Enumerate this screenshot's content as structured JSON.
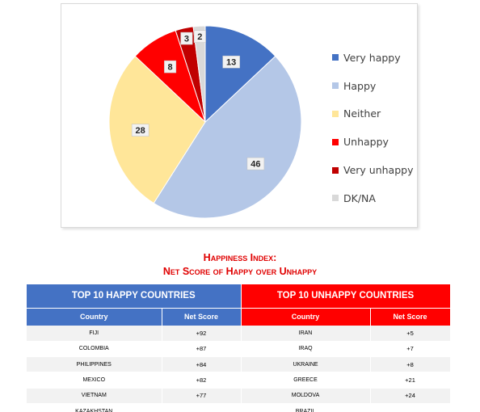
{
  "chart_data": {
    "type": "pie",
    "slices": [
      {
        "label": "Very happy",
        "value": 13,
        "color": "#4472c4"
      },
      {
        "label": "Happy",
        "value": 46,
        "color": "#b4c7e7"
      },
      {
        "label": "Neither",
        "value": 28,
        "color": "#ffe699"
      },
      {
        "label": "Unhappy",
        "value": 8,
        "color": "#ff0000"
      },
      {
        "label": "Very unhappy",
        "value": 3,
        "color": "#c00000"
      },
      {
        "label": "DK/NA",
        "value": 2,
        "color": "#d9d9d9"
      }
    ],
    "legend_position": "right",
    "start_angle": "12 o'clock",
    "direction": "clockwise"
  },
  "index_title": {
    "line1": "Happiness Index:",
    "line2": "Net Score of Happy over Unhappy"
  },
  "table": {
    "happy_header": "TOP 10 HAPPY COUNTRIES",
    "unhappy_header": "TOP 10 UNHAPPY COUNTRIES",
    "col_country": "Country",
    "col_score": "Net Score",
    "happy_header_color": "#4472c4",
    "unhappy_header_color": "#ff0000",
    "rows": [
      {
        "happy_country": "FIJI",
        "happy_score": "+92",
        "unhappy_country": "IRAN",
        "unhappy_score": "+5"
      },
      {
        "happy_country": "COLOMBIA",
        "happy_score": "+87",
        "unhappy_country": "IRAQ",
        "unhappy_score": "+7"
      },
      {
        "happy_country": "PHILIPPINES",
        "happy_score": "+84",
        "unhappy_country": "UKRAINE",
        "unhappy_score": "+8"
      },
      {
        "happy_country": "MEXICO",
        "happy_score": "+82",
        "unhappy_country": "GREECE",
        "unhappy_score": "+21"
      },
      {
        "happy_country": "VIETNAM",
        "happy_score": "+77",
        "unhappy_country": "MOLDOVA",
        "unhappy_score": "+24"
      },
      {
        "happy_country": "KAZAKHSTAN",
        "happy_score": "",
        "unhappy_country": "BRAZIL",
        "unhappy_score": ""
      }
    ]
  }
}
